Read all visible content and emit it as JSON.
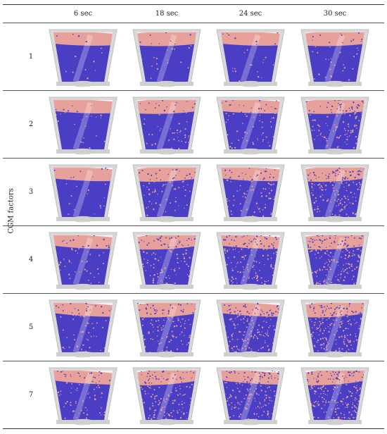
{
  "figure": {
    "side_label": "CGM factors",
    "columns": [
      "6 sec",
      "18 sec",
      "24 sec",
      "30 sec"
    ],
    "rows": [
      {
        "label": "1",
        "mixing": [
          0.05,
          0.1,
          0.1,
          0.15
        ]
      },
      {
        "label": "2",
        "mixing": [
          0.1,
          0.2,
          0.25,
          0.45
        ]
      },
      {
        "label": "3",
        "mixing": [
          0.1,
          0.3,
          0.35,
          0.6
        ]
      },
      {
        "label": "4",
        "mixing": [
          0.2,
          0.45,
          0.55,
          0.7
        ]
      },
      {
        "label": "5",
        "mixing": [
          0.25,
          0.5,
          0.6,
          0.75
        ]
      },
      {
        "label": "7",
        "mixing": [
          0.3,
          0.55,
          0.65,
          0.75
        ]
      }
    ],
    "colors": {
      "blue_particles": "#4a3fc4",
      "pink_particles": "#e8a09a",
      "vessel": "#d9d9d9"
    }
  }
}
